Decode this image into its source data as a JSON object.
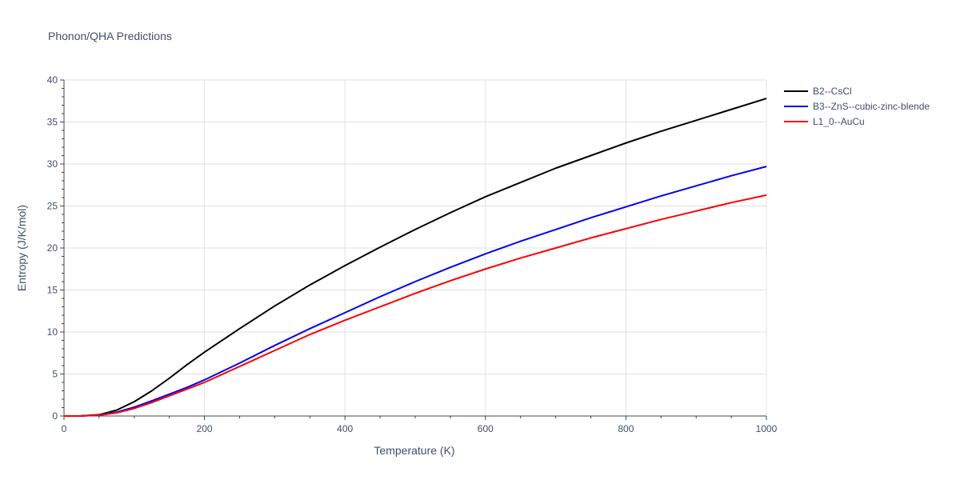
{
  "chart_data": {
    "type": "line",
    "title": "Phonon/QHA Predictions",
    "xlabel": "Temperature (K)",
    "ylabel": "Entropy (J/K/mol)",
    "xlim": [
      0,
      1000
    ],
    "ylim": [
      0,
      40
    ],
    "x_ticks": [
      0,
      200,
      400,
      600,
      800,
      1000
    ],
    "y_ticks": [
      0,
      5,
      10,
      15,
      20,
      25,
      30,
      35,
      40
    ],
    "grid": true,
    "legend_position": "top-right",
    "series": [
      {
        "name": "B2--CsCl",
        "color": "#000000",
        "points": [
          [
            0,
            0
          ],
          [
            25,
            0.01
          ],
          [
            50,
            0.15
          ],
          [
            75,
            0.7
          ],
          [
            100,
            1.7
          ],
          [
            125,
            3.0
          ],
          [
            150,
            4.5
          ],
          [
            175,
            6.1
          ],
          [
            200,
            7.6
          ],
          [
            250,
            10.4
          ],
          [
            300,
            13.1
          ],
          [
            350,
            15.6
          ],
          [
            400,
            17.9
          ],
          [
            450,
            20.1
          ],
          [
            500,
            22.2
          ],
          [
            550,
            24.2
          ],
          [
            600,
            26.1
          ],
          [
            650,
            27.8
          ],
          [
            700,
            29.5
          ],
          [
            750,
            31.0
          ],
          [
            800,
            32.5
          ],
          [
            850,
            33.9
          ],
          [
            900,
            35.2
          ],
          [
            950,
            36.5
          ],
          [
            1000,
            37.8
          ]
        ]
      },
      {
        "name": "B3--ZnS--cubic-zinc-blende",
        "color": "#0000ff",
        "points": [
          [
            0,
            0
          ],
          [
            25,
            0.01
          ],
          [
            50,
            0.1
          ],
          [
            75,
            0.45
          ],
          [
            100,
            1.05
          ],
          [
            125,
            1.8
          ],
          [
            150,
            2.6
          ],
          [
            175,
            3.4
          ],
          [
            200,
            4.3
          ],
          [
            250,
            6.3
          ],
          [
            300,
            8.4
          ],
          [
            350,
            10.4
          ],
          [
            400,
            12.3
          ],
          [
            450,
            14.2
          ],
          [
            500,
            16.0
          ],
          [
            550,
            17.7
          ],
          [
            600,
            19.3
          ],
          [
            650,
            20.8
          ],
          [
            700,
            22.2
          ],
          [
            750,
            23.6
          ],
          [
            800,
            24.9
          ],
          [
            850,
            26.2
          ],
          [
            900,
            27.4
          ],
          [
            950,
            28.6
          ],
          [
            1000,
            29.7
          ]
        ]
      },
      {
        "name": "L1_0--AuCu",
        "color": "#ff0000",
        "points": [
          [
            0,
            0
          ],
          [
            25,
            0.01
          ],
          [
            50,
            0.09
          ],
          [
            75,
            0.38
          ],
          [
            100,
            0.9
          ],
          [
            125,
            1.6
          ],
          [
            150,
            2.4
          ],
          [
            175,
            3.2
          ],
          [
            200,
            4.0
          ],
          [
            250,
            5.9
          ],
          [
            300,
            7.8
          ],
          [
            350,
            9.7
          ],
          [
            400,
            11.4
          ],
          [
            450,
            13.0
          ],
          [
            500,
            14.6
          ],
          [
            550,
            16.1
          ],
          [
            600,
            17.5
          ],
          [
            650,
            18.8
          ],
          [
            700,
            20.0
          ],
          [
            750,
            21.2
          ],
          [
            800,
            22.3
          ],
          [
            850,
            23.4
          ],
          [
            900,
            24.4
          ],
          [
            950,
            25.4
          ],
          [
            1000,
            26.3
          ]
        ]
      }
    ]
  }
}
